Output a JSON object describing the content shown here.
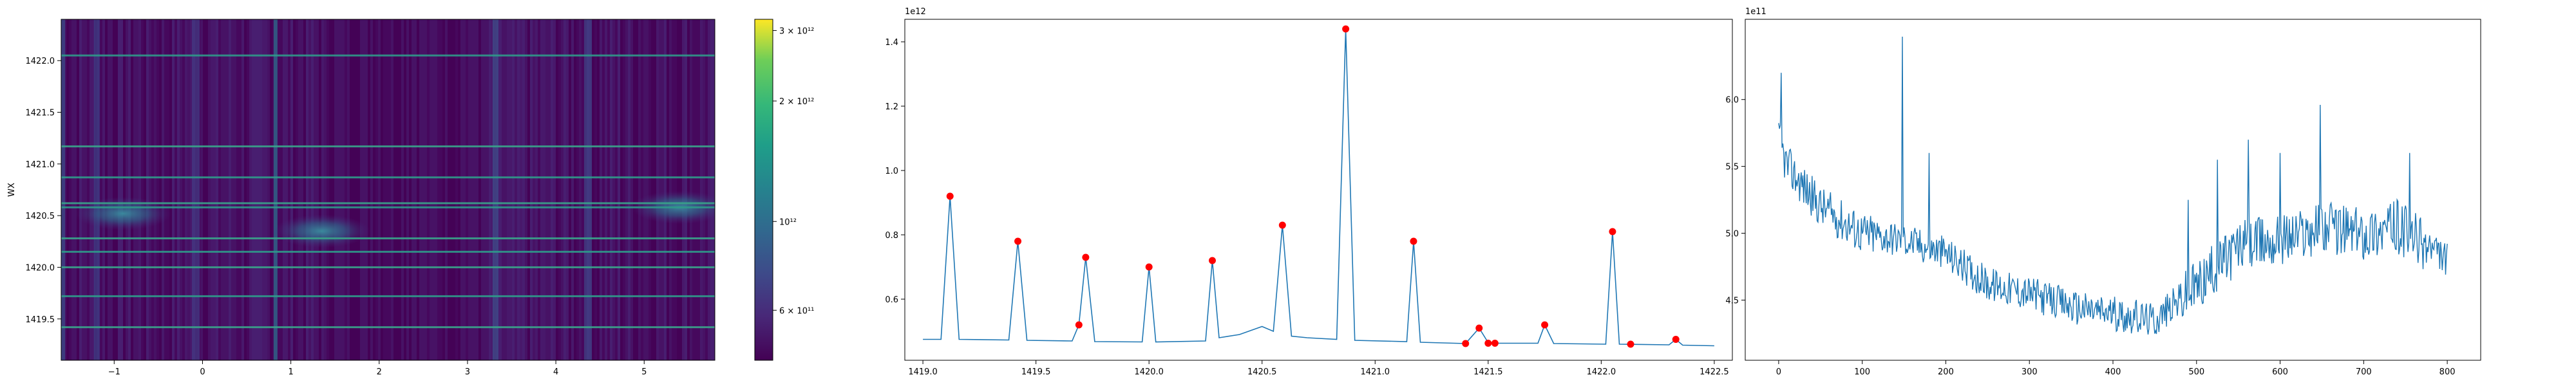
{
  "chart_data": [
    {
      "type": "heatmap",
      "colormap": "viridis",
      "ylabel": "WX",
      "xlabel": "",
      "xlim": [
        -1.6,
        5.8
      ],
      "ylim": [
        1419.1,
        1422.4
      ],
      "x_ticks": [
        "−1",
        "0",
        "1",
        "2",
        "3",
        "4",
        "5"
      ],
      "y_ticks": [
        "1419.5",
        "1420.0",
        "1420.5",
        "1421.0",
        "1421.5",
        "1422.0"
      ],
      "horizontal_lines_y": [
        1419.42,
        1419.72,
        1420.0,
        1420.15,
        1420.28,
        1420.58,
        1420.62,
        1420.87,
        1421.17,
        1422.05
      ],
      "blobs": [
        {
          "x": -0.9,
          "y": 1420.52
        },
        {
          "x": 1.35,
          "y": 1420.35
        },
        {
          "x": 5.4,
          "y": 1420.58
        }
      ],
      "colorbar": {
        "scale": "log",
        "range": [
          450000000000,
          3200000000000
        ],
        "tick_values": [
          3000000000000,
          2000000000000,
          1000000000000,
          600000000000
        ],
        "tick_labels": [
          "3 × 10¹²",
          "2 × 10¹²",
          "10¹²",
          "6 × 10¹¹"
        ]
      }
    },
    {
      "type": "line",
      "color": "#1f77b4",
      "peak_color": "#ff0000",
      "offset_label": "1e12",
      "xlim": [
        1418.92,
        1422.58
      ],
      "ylim": [
        0.41,
        1.47
      ],
      "x_ticks": [
        1419.0,
        1419.5,
        1420.0,
        1420.5,
        1421.0,
        1421.5,
        1422.0,
        1422.5
      ],
      "x_tick_labels": [
        "1419.0",
        "1419.5",
        "1420.0",
        "1420.5",
        "1421.0",
        "1421.5",
        "1422.0",
        "1422.5"
      ],
      "y_ticks": [
        0.6,
        0.8,
        1.0,
        1.2,
        1.4
      ],
      "y_tick_labels": [
        "0.6",
        "0.8",
        "1.0",
        "1.2",
        "1.4"
      ],
      "x": [
        1419.0,
        1419.08,
        1419.12,
        1419.16,
        1419.38,
        1419.42,
        1419.46,
        1419.66,
        1419.69,
        1419.72,
        1419.76,
        1419.97,
        1420.0,
        1420.03,
        1420.25,
        1420.28,
        1420.31,
        1420.4,
        1420.5,
        1420.55,
        1420.59,
        1420.63,
        1420.7,
        1420.83,
        1420.87,
        1420.91,
        1421.14,
        1421.17,
        1421.2,
        1421.4,
        1421.46,
        1421.5,
        1421.55,
        1421.72,
        1421.75,
        1421.79,
        1422.02,
        1422.05,
        1422.08,
        1422.3,
        1422.33,
        1422.36,
        1422.5
      ],
      "y": [
        0.475,
        0.475,
        0.92,
        0.475,
        0.473,
        0.78,
        0.472,
        0.47,
        0.52,
        0.73,
        0.468,
        0.467,
        0.7,
        0.467,
        0.47,
        0.72,
        0.48,
        0.49,
        0.515,
        0.5,
        0.83,
        0.485,
        0.48,
        0.475,
        1.44,
        0.472,
        0.468,
        0.78,
        0.466,
        0.462,
        0.51,
        0.465,
        0.463,
        0.463,
        0.52,
        0.462,
        0.46,
        0.81,
        0.46,
        0.458,
        0.475,
        0.457,
        0.455
      ],
      "peaks": [
        {
          "x": 1419.12,
          "y": 0.92
        },
        {
          "x": 1419.42,
          "y": 0.78
        },
        {
          "x": 1419.69,
          "y": 0.52
        },
        {
          "x": 1419.72,
          "y": 0.73
        },
        {
          "x": 1420.0,
          "y": 0.7
        },
        {
          "x": 1420.28,
          "y": 0.72
        },
        {
          "x": 1420.59,
          "y": 0.83
        },
        {
          "x": 1420.87,
          "y": 1.44
        },
        {
          "x": 1421.17,
          "y": 0.78
        },
        {
          "x": 1421.4,
          "y": 0.462
        },
        {
          "x": 1421.46,
          "y": 0.51
        },
        {
          "x": 1421.5,
          "y": 0.463
        },
        {
          "x": 1421.53,
          "y": 0.463
        },
        {
          "x": 1421.75,
          "y": 0.52
        },
        {
          "x": 1422.05,
          "y": 0.81
        },
        {
          "x": 1422.13,
          "y": 0.46
        },
        {
          "x": 1422.33,
          "y": 0.475
        }
      ]
    },
    {
      "type": "line",
      "color": "#1f77b4",
      "offset_label": "1e11",
      "xlim": [
        -40,
        840
      ],
      "ylim": [
        4.05,
        6.6
      ],
      "x_ticks": [
        0,
        100,
        200,
        300,
        400,
        500,
        600,
        700,
        800
      ],
      "x_tick_labels": [
        "0",
        "100",
        "200",
        "300",
        "400",
        "500",
        "600",
        "700",
        "800"
      ],
      "y_ticks": [
        4.5,
        5.0,
        5.5,
        6.0
      ],
      "y_tick_labels": [
        "4.5",
        "5.0",
        "5.5",
        "6.0"
      ],
      "n_points": 801,
      "trend_x": [
        0,
        10,
        50,
        100,
        150,
        200,
        250,
        300,
        350,
        400,
        450,
        480,
        500,
        550,
        600,
        650,
        700,
        740,
        800
      ],
      "trend_y": [
        5.7,
        5.5,
        5.2,
        5.0,
        4.95,
        4.85,
        4.62,
        4.55,
        4.45,
        4.4,
        4.35,
        4.5,
        4.6,
        4.9,
        4.95,
        5.05,
        5.0,
        5.05,
        4.8
      ],
      "spikes": [
        {
          "x": 3,
          "y": 6.2
        },
        {
          "x": 148,
          "y": 6.47
        },
        {
          "x": 180,
          "y": 5.6
        },
        {
          "x": 490,
          "y": 5.25
        },
        {
          "x": 525,
          "y": 5.55
        },
        {
          "x": 562,
          "y": 5.7
        },
        {
          "x": 600,
          "y": 5.6
        },
        {
          "x": 648,
          "y": 5.96
        },
        {
          "x": 755,
          "y": 5.6
        }
      ]
    }
  ]
}
